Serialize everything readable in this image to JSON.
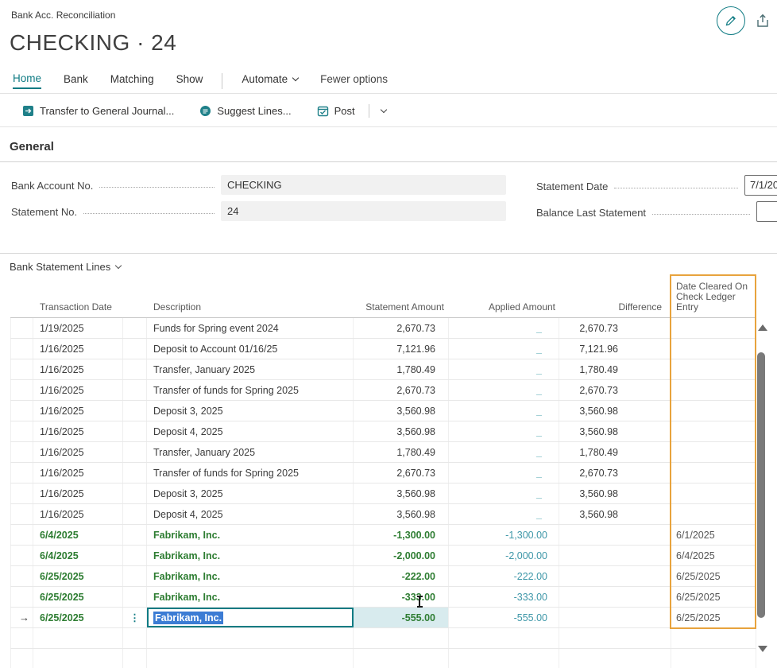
{
  "colors": {
    "accent": "#0f7b83",
    "row_green": "#2e7d32",
    "applied_teal": "#3e97a8",
    "highlight_orange": "#e8a33d",
    "selection_blue": "#3c7cd4"
  },
  "breadcrumb": "Bank Acc. Reconciliation",
  "title": "CHECKING · 24",
  "tabs": {
    "items": [
      "Home",
      "Bank",
      "Matching",
      "Show"
    ],
    "active": "Home",
    "automate": "Automate",
    "fewer_options": "Fewer options"
  },
  "toolbar": {
    "transfer": "Transfer to General Journal...",
    "suggest": "Suggest Lines...",
    "post": "Post"
  },
  "general": {
    "heading": "General",
    "fields": [
      {
        "label": "Bank Account No.",
        "value": "CHECKING"
      },
      {
        "label": "Statement No.",
        "value": "24"
      },
      {
        "label": "Statement Date",
        "value": "7/1/20"
      },
      {
        "label": "Balance Last Statement",
        "value": ""
      }
    ]
  },
  "lines_section": {
    "label": "Bank Statement Lines"
  },
  "table": {
    "columns": {
      "transaction_date": "Transaction Date",
      "description": "Description",
      "statement_amount": "Statement Amount",
      "applied_amount": "Applied Amount",
      "difference": "Difference",
      "date_cleared": "Date Cleared On Check Ledger Entry"
    },
    "rows": [
      {
        "date": "1/19/2025",
        "description": "Funds for Spring event 2024",
        "statement": "2,670.73",
        "applied": "_",
        "difference": "2,670.73",
        "cleared": "",
        "style": "normal"
      },
      {
        "date": "1/16/2025",
        "description": "Deposit to Account 01/16/25",
        "statement": "7,121.96",
        "applied": "_",
        "difference": "7,121.96",
        "cleared": "",
        "style": "normal"
      },
      {
        "date": "1/16/2025",
        "description": "Transfer, January 2025",
        "statement": "1,780.49",
        "applied": "_",
        "difference": "1,780.49",
        "cleared": "",
        "style": "normal"
      },
      {
        "date": "1/16/2025",
        "description": "Transfer of funds for Spring 2025",
        "statement": "2,670.73",
        "applied": "_",
        "difference": "2,670.73",
        "cleared": "",
        "style": "normal"
      },
      {
        "date": "1/16/2025",
        "description": "Deposit 3, 2025",
        "statement": "3,560.98",
        "applied": "_",
        "difference": "3,560.98",
        "cleared": "",
        "style": "normal"
      },
      {
        "date": "1/16/2025",
        "description": "Deposit 4, 2025",
        "statement": "3,560.98",
        "applied": "_",
        "difference": "3,560.98",
        "cleared": "",
        "style": "normal"
      },
      {
        "date": "1/16/2025",
        "description": "Transfer, January 2025",
        "statement": "1,780.49",
        "applied": "_",
        "difference": "1,780.49",
        "cleared": "",
        "style": "normal"
      },
      {
        "date": "1/16/2025",
        "description": "Transfer of funds for Spring 2025",
        "statement": "2,670.73",
        "applied": "_",
        "difference": "2,670.73",
        "cleared": "",
        "style": "normal"
      },
      {
        "date": "1/16/2025",
        "description": "Deposit 3, 2025",
        "statement": "3,560.98",
        "applied": "_",
        "difference": "3,560.98",
        "cleared": "",
        "style": "normal"
      },
      {
        "date": "1/16/2025",
        "description": "Deposit 4, 2025",
        "statement": "3,560.98",
        "applied": "_",
        "difference": "3,560.98",
        "cleared": "",
        "style": "normal"
      },
      {
        "date": "6/4/2025",
        "description": "Fabrikam, Inc.",
        "statement": "-1,300.00",
        "applied": "-1,300.00",
        "difference": "",
        "cleared": "6/1/2025",
        "style": "green"
      },
      {
        "date": "6/4/2025",
        "description": "Fabrikam, Inc.",
        "statement": "-2,000.00",
        "applied": "-2,000.00",
        "difference": "",
        "cleared": "6/4/2025",
        "style": "green"
      },
      {
        "date": "6/25/2025",
        "description": "Fabrikam, Inc.",
        "statement": "-222.00",
        "applied": "-222.00",
        "difference": "",
        "cleared": "6/25/2025",
        "style": "green"
      },
      {
        "date": "6/25/2025",
        "description": "Fabrikam, Inc.",
        "statement": "-333.00",
        "applied": "-333.00",
        "difference": "",
        "cleared": "6/25/2025",
        "style": "green"
      },
      {
        "date": "6/25/2025",
        "description": "Fabrikam, Inc.",
        "statement": "-555.00",
        "applied": "-555.00",
        "difference": "",
        "cleared": "6/25/2025",
        "style": "green",
        "selected": true,
        "editing": true
      },
      {
        "date": "",
        "description": "",
        "statement": "",
        "applied": "",
        "difference": "",
        "cleared": "",
        "style": "empty"
      },
      {
        "date": "",
        "description": "",
        "statement": "",
        "applied": "",
        "difference": "",
        "cleared": "",
        "style": "empty"
      }
    ]
  }
}
